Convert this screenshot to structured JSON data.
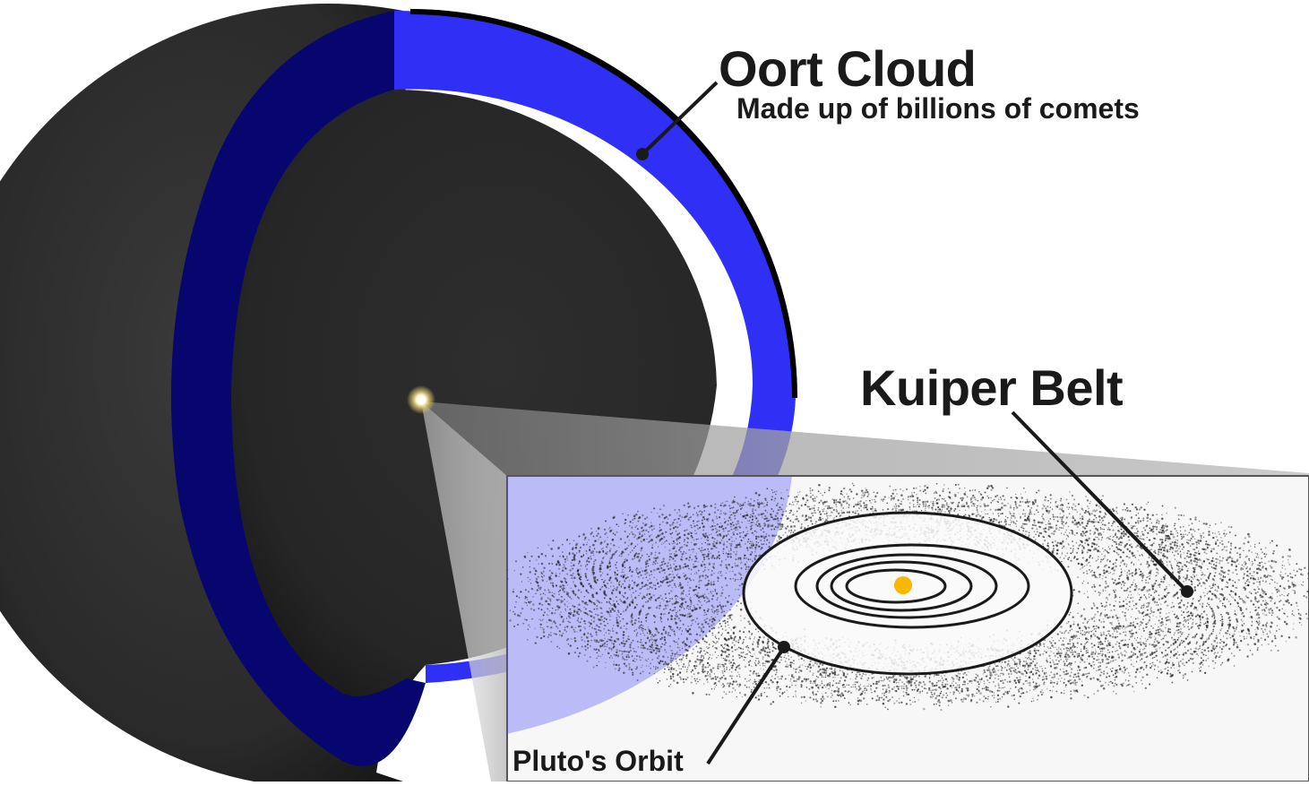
{
  "labels": {
    "oort_title": "Oort Cloud",
    "oort_subtitle": "Made up of billions of comets",
    "kuiper_title": "Kuiper Belt",
    "pluto_orbit": "Pluto's Orbit"
  },
  "colors": {
    "oort_shell": "#2f2ff5",
    "oort_shell_dark": "#06066e",
    "sphere_dark": "#222222",
    "inset_background": "#f7f7f7",
    "sun": "#f6b800",
    "orbit_line": "#1a1a1a",
    "belt_particles": "#2a2a2a"
  },
  "icons": {
    "center_sun": "sun-glow-icon",
    "inset_sun": "sun-icon"
  },
  "diagram": {
    "planet_orbit_count": 4,
    "belt_particle_count": 9000
  }
}
